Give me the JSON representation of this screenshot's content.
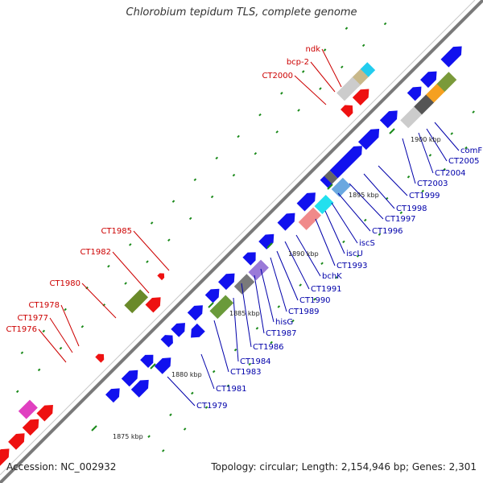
{
  "title": "Chlorobium tepidum TLS, complete genome",
  "footer": {
    "accession": "Accession: NC_002932",
    "summary": "Topology: circular; Length: 2,154,946 bp; Genes: 2,301"
  },
  "colors": {
    "backbone": "#7a7a7a",
    "forward_strand": "#ee1111",
    "reverse_strand": "#1111ee",
    "label_forward": "#cc0000",
    "label_reverse": "#0000aa",
    "tick": "#1a8a1a"
  },
  "kbp_ticks": [
    "1875 kbp",
    "1880 kbp",
    "1885 kbp",
    "1890 kbp",
    "1895 kbp",
    "1900 kbp"
  ],
  "forward_gene_labels": [
    "ndk",
    "bcp-2",
    "CT2000",
    "CT1985",
    "CT1982",
    "CT1980",
    "CT1978",
    "CT1977",
    "CT1976"
  ],
  "reverse_gene_labels": [
    "comF",
    "CT2005",
    "CT2004",
    "CT2003",
    "CT1999",
    "CT1998",
    "CT1997",
    "CT1996",
    "iscS",
    "iscU",
    "CT1993",
    "bchK",
    "CT1991",
    "CT1990",
    "CT1989",
    "hisG",
    "CT1987",
    "CT1986",
    "CT1984",
    "CT1983",
    "CT1981",
    "CT1979"
  ]
}
